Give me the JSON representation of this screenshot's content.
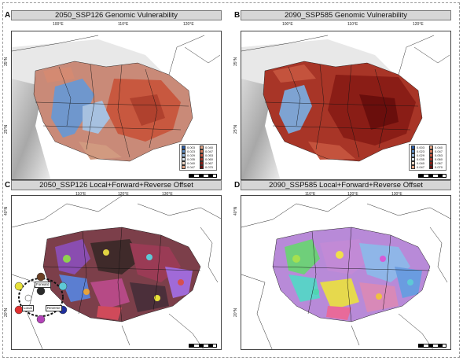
{
  "panels": {
    "a": {
      "letter": "A",
      "title": "2050_SSP126 Genomic Vulnerability",
      "ticks_x": [
        "100°E",
        "110°E",
        "120°E"
      ],
      "ticks_y": [
        "35°N",
        "25°N"
      ]
    },
    "b": {
      "letter": "B",
      "title": "2090_SSP585 Genomic Vulnerability",
      "ticks_x": [
        "100°E",
        "110°E",
        "120°E"
      ],
      "ticks_y": [
        "35°N",
        "25°N"
      ]
    },
    "c": {
      "letter": "C",
      "title": "2050_SSP126 Local+Forward+Reverse Offset",
      "ticks_x": [
        "110°E",
        "120°E",
        "130°E"
      ],
      "ticks_y": [
        "40°N",
        "20°N"
      ]
    },
    "d": {
      "letter": "D",
      "title": "2090_SSP585 Local+Forward+Reverse Offset",
      "ticks_x": [
        "110°E",
        "120°E",
        "130°E"
      ],
      "ticks_y": [
        "40°N",
        "20°N"
      ]
    }
  },
  "legend": {
    "left_labels": [
      "0.003",
      "0.023",
      "0.029",
      "0.035",
      "0.040",
      "0.047"
    ],
    "right_labels": [
      "0.040",
      "0.047",
      "0.053",
      "0.060",
      "0.067",
      "0.070"
    ],
    "left_colors": [
      "#2c5fae",
      "#5f8fc9",
      "#9dbde0",
      "#dce6f0",
      "#f1d9c8",
      "#e5a586"
    ],
    "right_colors": [
      "#e5a586",
      "#d57a5c",
      "#c4533d",
      "#a83527",
      "#8a1d16",
      "#6a0e0c"
    ]
  },
  "offset_diagram": {
    "labels": [
      "Forward",
      "Local",
      "Reverse"
    ],
    "node_colors": [
      "#e8e23a",
      "#6a3f25",
      "#5ec9d6",
      "#e02f2f",
      "#1f2f9e",
      "#b343b8",
      "#ffffff",
      "#2b2b2b"
    ]
  }
}
